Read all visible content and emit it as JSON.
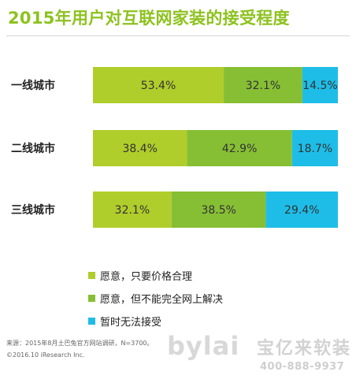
{
  "title": "2015年用户对互联网家装的接受程度",
  "chart_data": {
    "type": "bar",
    "stacked": true,
    "orientation": "horizontal",
    "categories": [
      "一线城市",
      "二线城市",
      "三线城市"
    ],
    "xlim": [
      0,
      100
    ],
    "grid": false,
    "legend_position": "bottom",
    "series": [
      {
        "name": "愿意，只要价格合理",
        "color": "#afcd2b",
        "values": [
          53.4,
          38.4,
          32.1
        ],
        "labels": [
          "53.4%",
          "38.4%",
          "32.1%"
        ]
      },
      {
        "name": "愿意，但不能完全网上解决",
        "color": "#86bf34",
        "values": [
          32.1,
          42.9,
          38.5
        ],
        "labels": [
          "32.1%",
          "42.9%",
          "38.5%"
        ]
      },
      {
        "name": "暂时无法接受",
        "color": "#1ebde7",
        "values": [
          14.5,
          18.7,
          29.4
        ],
        "labels": [
          "14.5%",
          "18.7%",
          "29.4%"
        ]
      }
    ]
  },
  "legend": [
    {
      "label": "愿意，只要价格合理",
      "color": "#afcd2b"
    },
    {
      "label": "愿意，但不能完全网上解决",
      "color": "#86bf34"
    },
    {
      "label": "暂时无法接受",
      "color": "#1ebde7"
    }
  ],
  "source": "来源：2015年8月土巴兔官方网站调研，N=3700。",
  "copyright": "©2016.10 iResearch Inc.",
  "watermark": {
    "brand": "bylai",
    "cn": "宝亿来软装",
    "phone": "400-888-9937"
  }
}
